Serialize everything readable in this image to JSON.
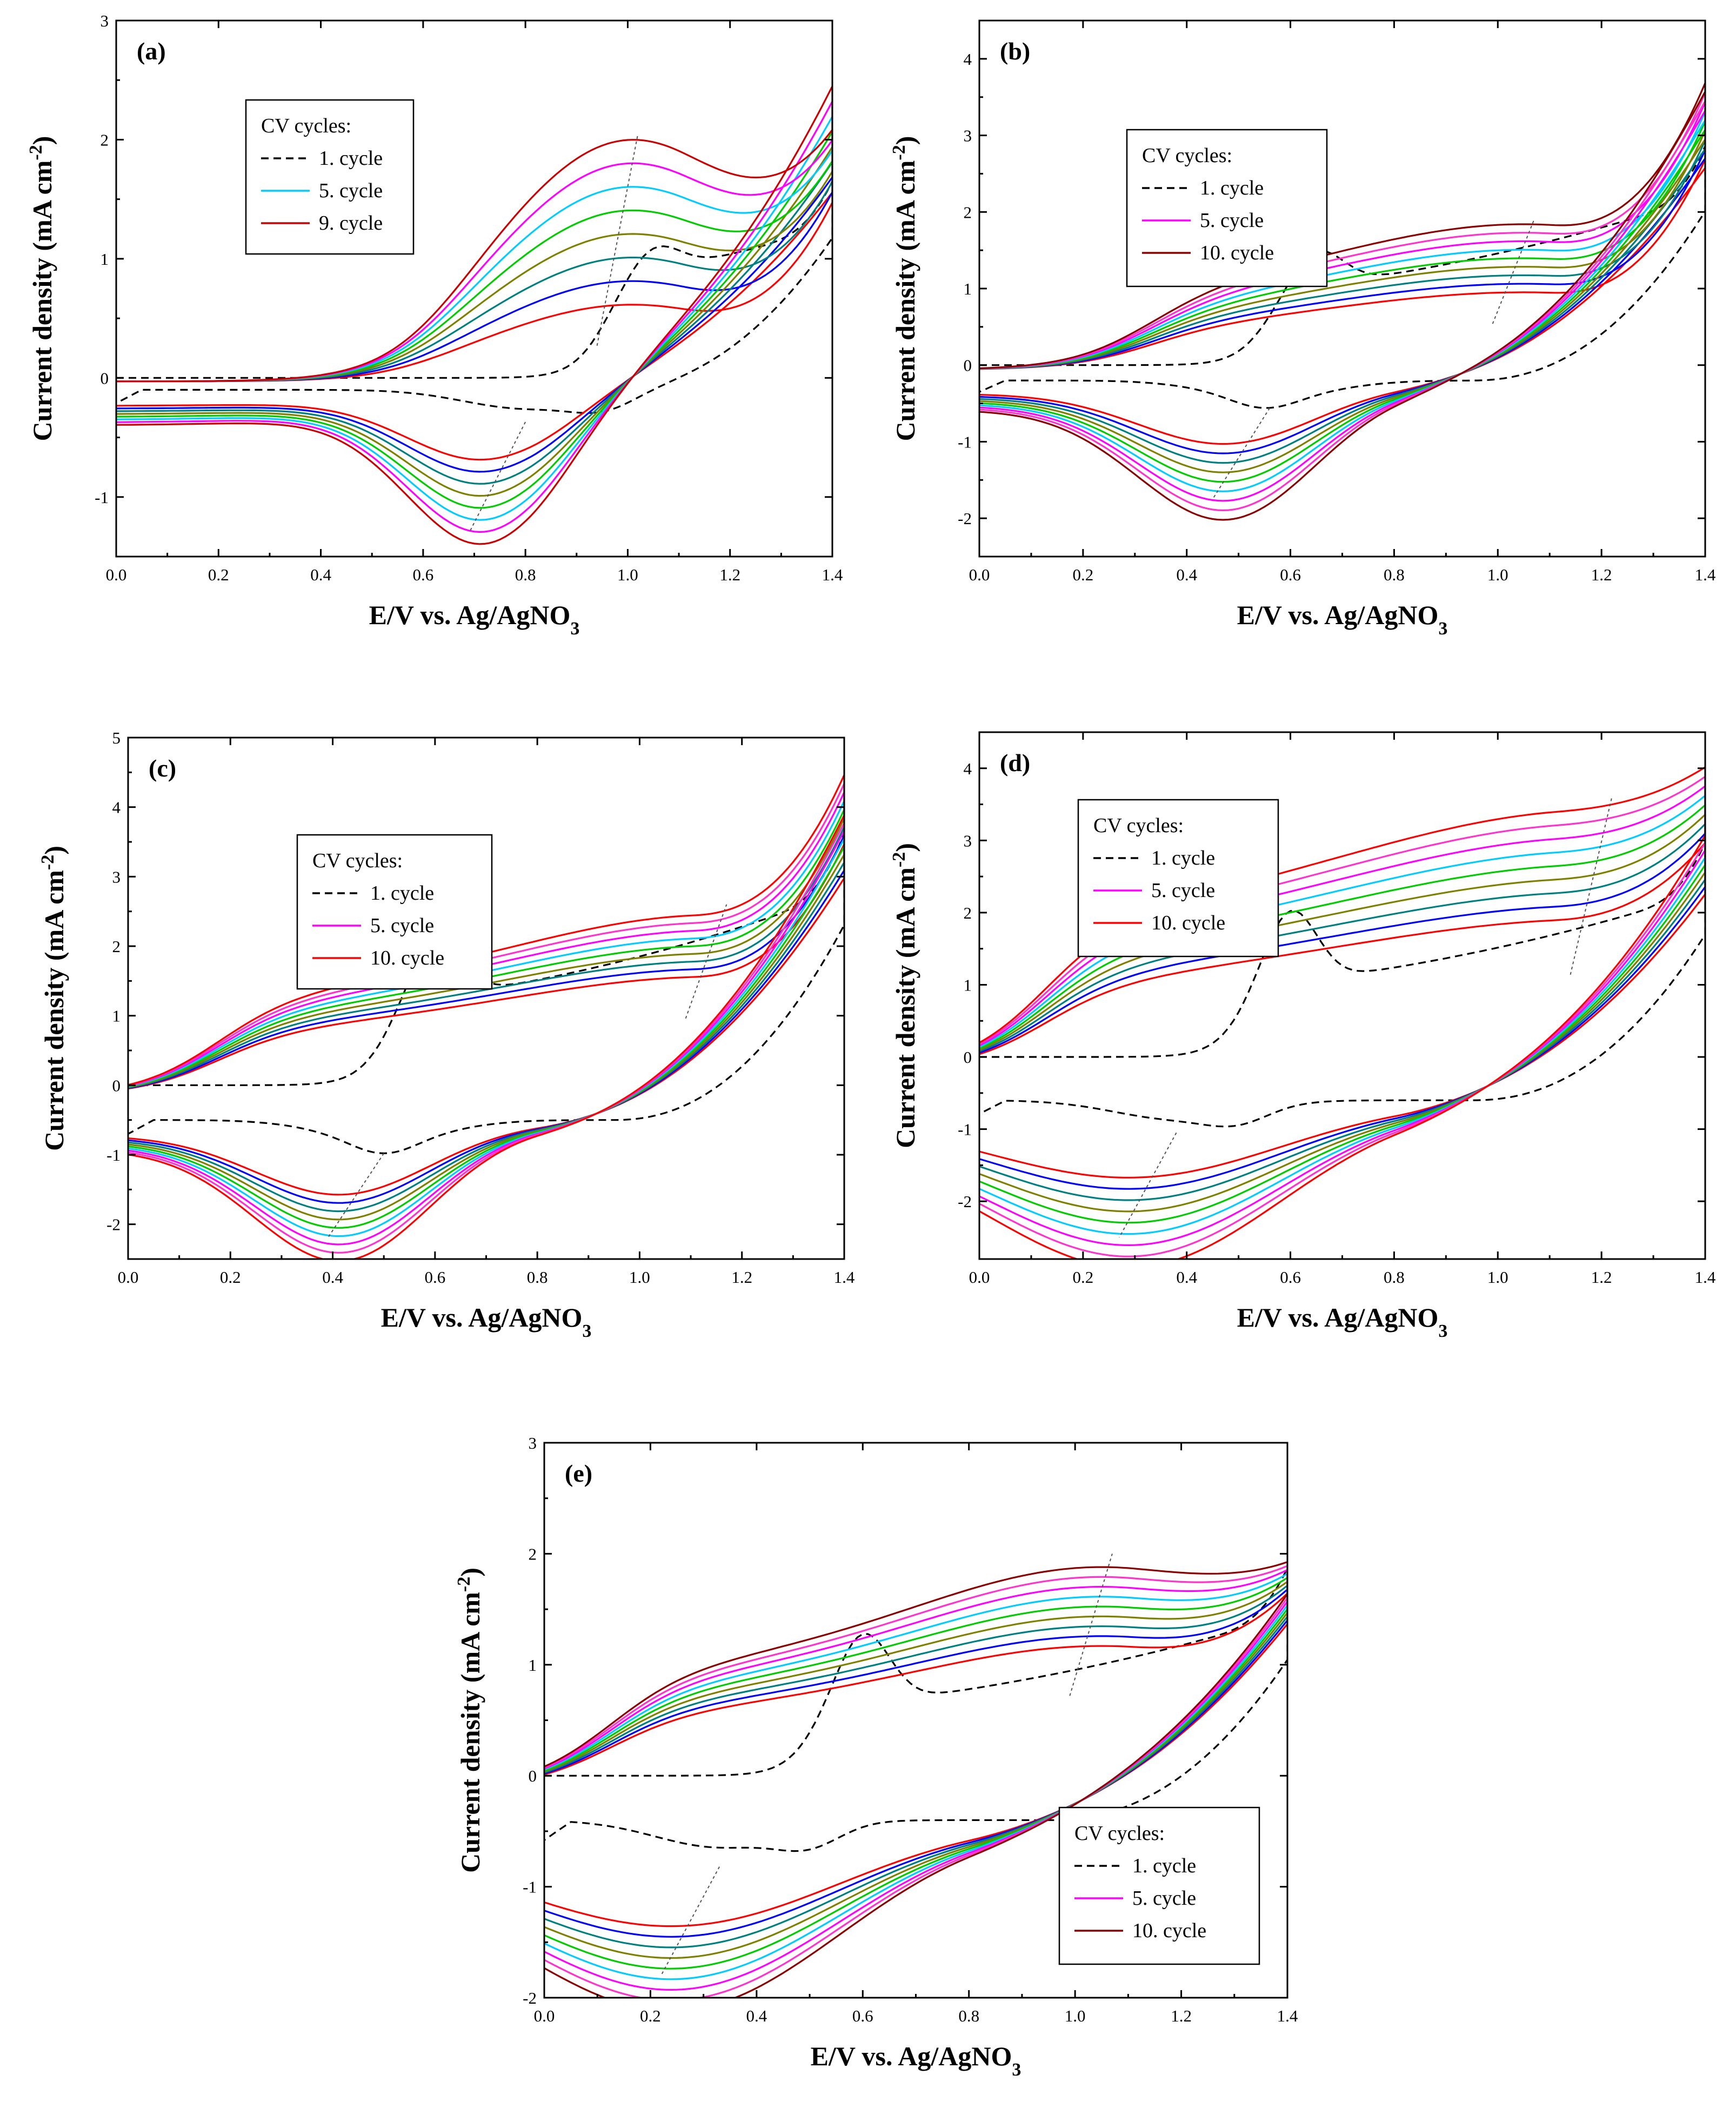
{
  "palette": {
    "first_cycle": "#000000",
    "cycles": [
      "#ff0000",
      "#0000ff",
      "#008080",
      "#808000",
      "#00cc00",
      "#00ccff",
      "#ff00ff",
      "#ff33cc",
      "#cc0033",
      "#8b0000"
    ]
  },
  "chart_data": [
    {
      "type": "line",
      "panel": "(a)",
      "xlabel": "E/V vs. Ag/AgNO",
      "xlabel_subscript": "3",
      "ylabel": "Current density (mA cm",
      "ylabel_superscript": "-2",
      "ylabel_close": ")",
      "xlim": [
        0.0,
        1.4
      ],
      "ylim": [
        -1.5,
        3.0
      ],
      "x_ticks": [
        "0.0",
        "0.2",
        "0.4",
        "0.6",
        "0.8",
        "1.0",
        "1.2",
        "1.4"
      ],
      "y_ticks": [
        "-1",
        "0",
        "1",
        "2",
        "3"
      ],
      "legend_position": "upper-left",
      "legend": {
        "title": "CV cycles:",
        "entries": [
          "1. cycle",
          "5. cycle",
          "9. cycle"
        ]
      },
      "legend_colors": [
        "#000000",
        "#00ccff",
        "#cc0000"
      ],
      "series_count": 9,
      "model": {
        "onset": 0.5,
        "onset_growth": 0.02,
        "oxPeakX": 1.0,
        "oxPeak0": 0.45,
        "oxPeakGrow": 1.6,
        "oxW": 0.2,
        "endI0": 1.5,
        "endIGrow": 1.0,
        "redPeakX": 0.72,
        "redPeak0": 0.45,
        "redPeakGrow": 0.75,
        "redW": 0.15,
        "base": -0.1,
        "c1_onset": 0.95
      }
    },
    {
      "type": "line",
      "panel": "(b)",
      "xlabel": "E/V vs. Ag/AgNO",
      "xlabel_subscript": "3",
      "ylabel": "Current density (mA cm",
      "ylabel_superscript": "-2",
      "ylabel_close": ")",
      "xlim": [
        0.0,
        1.4
      ],
      "ylim": [
        -2.5,
        4.5
      ],
      "x_ticks": [
        "0.0",
        "0.2",
        "0.4",
        "0.6",
        "0.8",
        "1.0",
        "1.2",
        "1.4"
      ],
      "y_ticks": [
        "-2",
        "-1",
        "0",
        "1",
        "2",
        "3",
        "4"
      ],
      "legend_position": "upper-left",
      "legend": {
        "title": "CV cycles:",
        "entries": [
          "1. cycle",
          "5. cycle",
          "10. cycle"
        ]
      },
      "legend_colors": [
        "#000000",
        "#ff00ff",
        "#8b0000"
      ],
      "series_count": 10,
      "model": {
        "onset": 0.2,
        "onset_growth": 0.0,
        "oxPeakX": 1.05,
        "oxPeak0": 0.9,
        "oxPeakGrow": 1.0,
        "oxW": 0.35,
        "endI0": 2.6,
        "endIGrow": 1.1,
        "redPeakX": 0.48,
        "redPeak0": 0.6,
        "redPeakGrow": 0.95,
        "redW": 0.17,
        "base": -0.2,
        "c1_onset": 0.55
      }
    },
    {
      "type": "line",
      "panel": "(c)",
      "xlabel": "E/V vs. Ag/AgNO",
      "xlabel_subscript": "3",
      "ylabel": "Current density (mA cm",
      "ylabel_superscript": "-2",
      "ylabel_close": ")",
      "xlim": [
        0.0,
        1.4
      ],
      "ylim": [
        -2.5,
        5.0
      ],
      "x_ticks": [
        "0.0",
        "0.2",
        "0.4",
        "0.6",
        "0.8",
        "1.0",
        "1.2",
        "1.4"
      ],
      "y_ticks": [
        "-2",
        "-1",
        "0",
        "1",
        "2",
        "3",
        "4",
        "5"
      ],
      "legend_position": "upper-left",
      "legend": {
        "title": "CV cycles:",
        "entries": [
          "1. cycle",
          "5. cycle",
          "10. cycle"
        ]
      },
      "legend_colors": [
        "#000000",
        "#ff00ff",
        "#ff0000"
      ],
      "series_count": 10,
      "model": {
        "onset": 0.05,
        "onset_growth": 0.0,
        "oxPeakX": 1.15,
        "oxPeak0": 1.6,
        "oxPeakGrow": 1.0,
        "oxW": 0.4,
        "endI0": 3.3,
        "endIGrow": 1.0,
        "redPeakX": 0.42,
        "redPeak0": 0.8,
        "redPeakGrow": 0.9,
        "redW": 0.17,
        "base": -0.5,
        "c1_onset": 0.5
      }
    },
    {
      "type": "line",
      "panel": "(d)",
      "xlabel": "E/V vs. Ag/AgNO",
      "xlabel_subscript": "3",
      "ylabel": "Current density (mA cm",
      "ylabel_superscript": "-2",
      "ylabel_close": ")",
      "xlim": [
        0.0,
        1.4
      ],
      "ylim": [
        -2.8,
        4.5
      ],
      "x_ticks": [
        "0.0",
        "0.2",
        "0.4",
        "0.6",
        "0.8",
        "1.0",
        "1.2",
        "1.4"
      ],
      "y_ticks": [
        "-2",
        "-1",
        "0",
        "1",
        "2",
        "3",
        "4"
      ],
      "legend_position": "upper-left",
      "legend": {
        "title": "CV cycles:",
        "entries": [
          "1. cycle",
          "5. cycle",
          "10. cycle"
        ]
      },
      "legend_colors": [
        "#000000",
        "#ff00ff",
        "#ff0000"
      ],
      "series_count": 10,
      "model": {
        "onset": 0.0,
        "onset_growth": 0.0,
        "oxPeakX": 1.2,
        "oxPeak0": 1.9,
        "oxPeakGrow": 1.7,
        "oxW": 0.5,
        "endI0": 2.7,
        "endIGrow": 0.9,
        "redPeakX": 0.3,
        "redPeak0": 0.75,
        "redPeakGrow": 1.15,
        "redW": 0.28,
        "base": -0.6,
        "c1_onset": 0.5
      }
    },
    {
      "type": "line",
      "panel": "(e)",
      "xlabel": "E/V vs. Ag/AgNO",
      "xlabel_subscript": "3",
      "ylabel": "Current density (mA cm",
      "ylabel_superscript": "-2",
      "ylabel_close": ")",
      "xlim": [
        0.0,
        1.4
      ],
      "ylim": [
        -2.0,
        3.0
      ],
      "x_ticks": [
        "0.0",
        "0.2",
        "0.4",
        "0.6",
        "0.8",
        "1.0",
        "1.2",
        "1.4"
      ],
      "y_ticks": [
        "-2",
        "-1",
        "0",
        "1",
        "2",
        "3"
      ],
      "legend_position": "lower-right",
      "legend": {
        "title": "CV cycles:",
        "entries": [
          "1. cycle",
          "5. cycle",
          "10. cycle"
        ]
      },
      "legend_colors": [
        "#000000",
        "#ff00ff",
        "#8b0000"
      ],
      "series_count": 10,
      "model": {
        "onset": 0.0,
        "onset_growth": 0.0,
        "oxPeakX": 1.05,
        "oxPeak0": 1.2,
        "oxPeakGrow": 0.8,
        "oxW": 0.35,
        "endI0": 1.7,
        "endIGrow": 0.3,
        "redPeakX": 0.25,
        "redPeak0": 0.7,
        "redPeakGrow": 0.7,
        "redW": 0.3,
        "base": -0.4,
        "c1_onset": 0.5
      }
    }
  ]
}
